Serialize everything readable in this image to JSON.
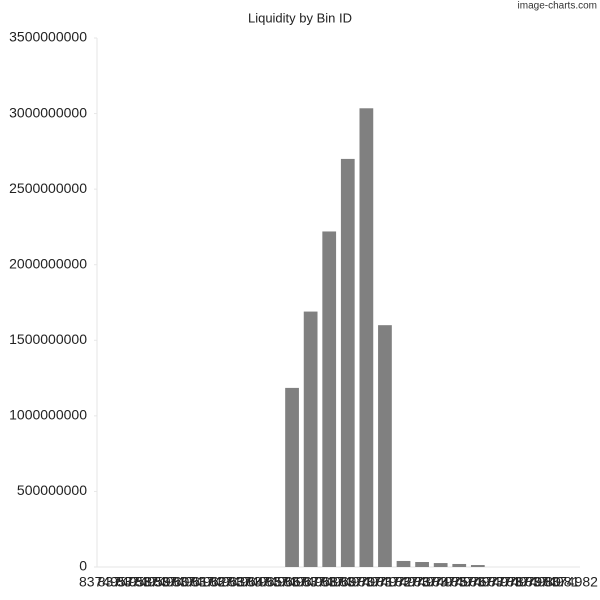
{
  "chart_data": {
    "type": "bar",
    "title": "Liquidity by Bin ID",
    "watermark": "image-charts.com",
    "categories": [
      "8374957",
      "8374958",
      "8374959",
      "8374960",
      "8374961",
      "8374962",
      "8374963",
      "8374964",
      "8374965",
      "8374966",
      "8374967",
      "8374968",
      "8374969",
      "8374970",
      "8374971",
      "8374972",
      "8374973",
      "8374974",
      "8374975",
      "8374976",
      "8374977",
      "8374978",
      "8374979",
      "8374980",
      "8374981",
      "8374982"
    ],
    "values": [
      0,
      0,
      0,
      0,
      0,
      0,
      0,
      0,
      0,
      0,
      1185000000,
      1690000000,
      2220000000,
      2700000000,
      3035000000,
      1600000000,
      40000000,
      33000000,
      26000000,
      20000000,
      13000000,
      0,
      0,
      0,
      0,
      0
    ],
    "color": "#808080",
    "ylim": [
      0,
      3500000000
    ],
    "yticks": [
      0,
      500000000,
      1000000000,
      1500000000,
      2000000000,
      2500000000,
      3000000000,
      3500000000
    ],
    "grid": false
  }
}
